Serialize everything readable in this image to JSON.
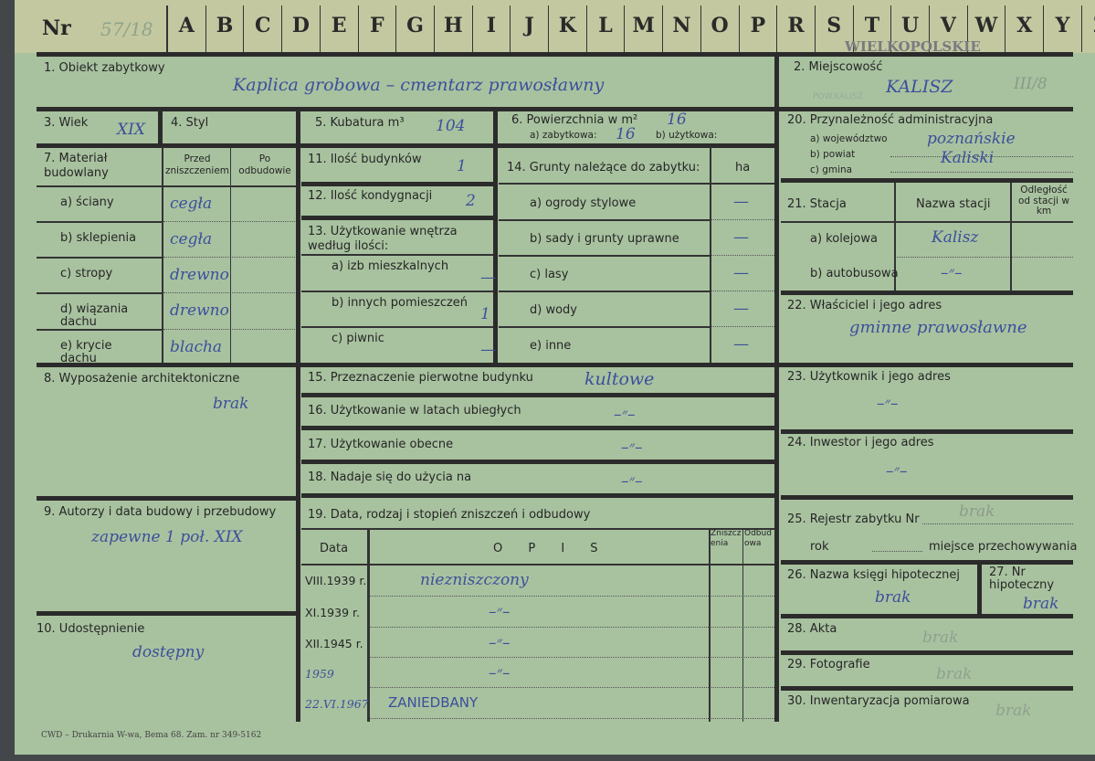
{
  "header": {
    "nr_label": "Nr",
    "nr_value": "57/18",
    "letters": [
      "A",
      "B",
      "C",
      "D",
      "E",
      "F",
      "G",
      "H",
      "I",
      "J",
      "K",
      "L",
      "M",
      "N",
      "O",
      "P",
      "R",
      "S",
      "T",
      "U",
      "V",
      "W",
      "X",
      "Y",
      "Z"
    ],
    "stamp": "WIELKOPOLSKIE"
  },
  "f1": {
    "label": "1. Obiekt zabytkowy",
    "value": "Kaplica grobowa – cmentarz prawosławny"
  },
  "f2": {
    "label": "2. Miejscowość",
    "value": "KALISZ",
    "margin_note": "III/8",
    "stamp": "POW.KALISZ"
  },
  "f3": {
    "label": "3. Wiek",
    "value": "XIX"
  },
  "f4": {
    "label": "4. Styl"
  },
  "f5": {
    "label": "5. Kubatura m³",
    "value": "104"
  },
  "f6": {
    "label": "6. Powierzchnia w m²",
    "value": "16",
    "a_label": "a) zabytkowa:",
    "a_value": "16",
    "b_label": "b) użytkowa:"
  },
  "f7": {
    "label": "7. Materiał budowlany",
    "col_before": "Przed zniszczeniem",
    "col_after": "Po odbudowie",
    "rows": [
      {
        "label": "a) ściany",
        "before": "cegła"
      },
      {
        "label": "b) sklepienia",
        "before": "cegła"
      },
      {
        "label": "c) stropy",
        "before": "drewno"
      },
      {
        "label": "d) wiązania dachu",
        "before": "drewno"
      },
      {
        "label": "e) krycie dachu",
        "before": "blacha"
      }
    ]
  },
  "f11": {
    "label": "11. Ilość budynków",
    "value": "1"
  },
  "f12": {
    "label": "12. Ilość kondygnacji",
    "value": "2"
  },
  "f13": {
    "label": "13. Użytkowanie wnętrza według ilości:",
    "rows": [
      {
        "label": "a) izb mieszkalnych",
        "value": "—"
      },
      {
        "label": "b) innych pomieszczeń",
        "value": "1"
      },
      {
        "label": "c) piwnic",
        "value": "—"
      }
    ]
  },
  "f14": {
    "label": "14. Grunty należące do zabytku:",
    "unit": "ha",
    "rows": [
      {
        "label": "a) ogrody stylowe",
        "value": "—"
      },
      {
        "label": "b) sady i grunty uprawne",
        "value": "—"
      },
      {
        "label": "c) lasy",
        "value": "—"
      },
      {
        "label": "d) wody",
        "value": "—"
      },
      {
        "label": "e) inne",
        "value": "—"
      }
    ]
  },
  "f20": {
    "label": "20. Przynależność administracyjna",
    "a_label": "a) województwo",
    "a_value": "poznańskie",
    "b_label": "b) powiat",
    "b_value": "Kaliski",
    "c_label": "c) gmina"
  },
  "f21": {
    "label": "21. Stacja",
    "col_name": "Nazwa stacji",
    "col_dist": "Odległość od stacji w km",
    "rows": [
      {
        "label": "a) kolejowa",
        "value": "Kalisz"
      },
      {
        "label": "b) autobusowa",
        "value": "–״–"
      }
    ]
  },
  "f22": {
    "label": "22. Właściciel i jego adres",
    "value": "gminne prawosławne"
  },
  "f8": {
    "label": "8. Wyposażenie architektoniczne",
    "value": "brak"
  },
  "f9": {
    "label": "9. Autorzy i data budowy i przebudowy",
    "value": "zapewne 1 poł. XIX"
  },
  "f10": {
    "label": "10. Udostępnienie",
    "value": "dostępny"
  },
  "f15": {
    "label": "15. Przeznaczenie pierwotne budynku",
    "value": "kultowe"
  },
  "f16": {
    "label": "16. Użytkowanie w latach ubiegłych",
    "value": "–״–"
  },
  "f17": {
    "label": "17. Użytkowanie obecne",
    "value": "–״–"
  },
  "f18": {
    "label": "18. Nadaje się do użycia na",
    "value": "–״–"
  },
  "f19": {
    "label": "19. Data, rodzaj i stopień zniszczeń i odbudowy",
    "col_date": "Data",
    "col_desc": "O P I S",
    "col_damage": "Zniszczenia",
    "col_rebuild": "Odbudowa",
    "rows": [
      {
        "date": "VIII.1939 r.",
        "desc": "niezniszczony"
      },
      {
        "date": "XI.1939 r.",
        "desc": "–״–"
      },
      {
        "date": "XII.1945 r.",
        "desc": "–״–"
      },
      {
        "date": "1959",
        "desc": "–״–"
      },
      {
        "date": "22.VI.1967",
        "desc": "ZANIEDBANY"
      }
    ]
  },
  "f23": {
    "label": "23. Użytkownik i jego adres",
    "value": "–״–"
  },
  "f24": {
    "label": "24. Inwestor i jego adres",
    "value": "–״–"
  },
  "f25": {
    "label": "25. Rejestr zabytku Nr",
    "value": "brak",
    "rok_label": "rok",
    "place_label": "miejsce przechowywania"
  },
  "f26": {
    "label": "26. Nazwa księgi hipotecznej",
    "value": "brak"
  },
  "f27": {
    "label": "27. Nr hipoteczny",
    "value": "brak"
  },
  "f28": {
    "label": "28. Akta",
    "value": "brak"
  },
  "f29": {
    "label": "29. Fotografie",
    "value": "brak"
  },
  "f30": {
    "label": "30. Inwentaryzacja pomiarowa",
    "value": "brak"
  },
  "footer": {
    "imprint": "CWD – Drukarnia W-wa, Bema 68. Zam. nr 349-5162"
  },
  "colors": {
    "card": "#a8c29f",
    "strip": "#c3c8a0",
    "ink": "#3d4f9c",
    "rule": "#2b2b2b"
  }
}
